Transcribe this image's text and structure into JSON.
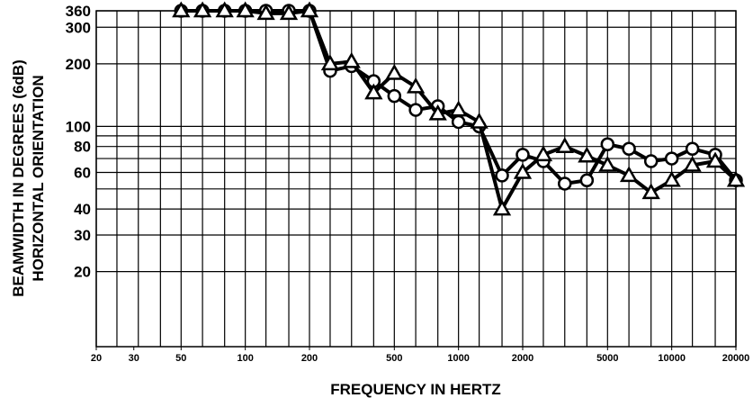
{
  "chart_data": {
    "type": "line",
    "y_label_lines": [
      "BEAMWIDTH IN DEGREES (6dB)",
      "HORIZONTAL ORIENTATION"
    ],
    "x_label": "FREQUENCY IN HERTZ",
    "log_x": true,
    "log_y": true,
    "xlim": [
      20,
      20000
    ],
    "ylim": [
      8.7,
      360
    ],
    "xticks": [
      20,
      30,
      50,
      100,
      200,
      500,
      1000,
      2000,
      5000,
      10000,
      20000
    ],
    "xgrid": [
      20,
      25,
      31.5,
      40,
      50,
      63,
      80,
      100,
      125,
      160,
      200,
      250,
      315,
      400,
      500,
      630,
      800,
      1000,
      1250,
      1600,
      2000,
      2500,
      3150,
      4000,
      5000,
      6300,
      8000,
      10000,
      12500,
      16000,
      20000
    ],
    "yticks": [
      20,
      30,
      40,
      60,
      80,
      100,
      200,
      300,
      360
    ],
    "ygrid": [
      50,
      70,
      90
    ],
    "x": [
      50,
      63,
      80,
      100,
      125,
      160,
      200,
      250,
      315,
      400,
      500,
      630,
      800,
      1000,
      1250,
      1600,
      2000,
      2500,
      3150,
      4000,
      5000,
      6300,
      8000,
      10000,
      12500,
      16000,
      20000
    ],
    "series": [
      {
        "marker": "circle",
        "color": "#000000",
        "values": [
          360,
          360,
          360,
          360,
          360,
          360,
          360,
          185,
          195,
          165,
          140,
          120,
          125,
          105,
          100,
          58,
          73,
          68,
          53,
          55,
          82,
          78,
          68,
          70,
          78,
          73,
          55
        ]
      },
      {
        "marker": "triangle",
        "color": "#000000",
        "values": [
          360,
          360,
          360,
          360,
          350,
          350,
          360,
          200,
          205,
          145,
          180,
          155,
          115,
          120,
          105,
          40,
          60,
          73,
          80,
          72,
          65,
          58,
          48,
          55,
          65,
          68,
          55
        ]
      }
    ]
  }
}
